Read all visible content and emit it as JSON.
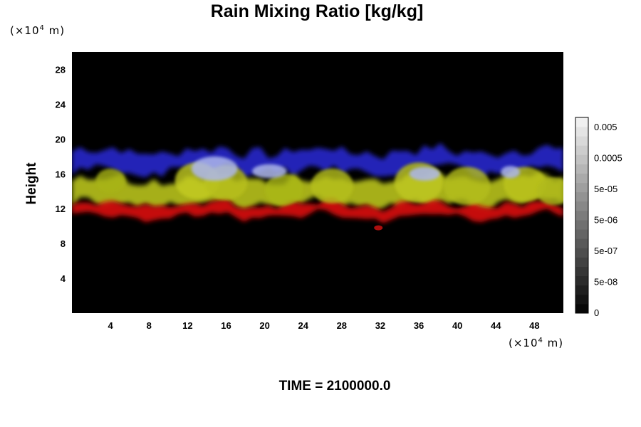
{
  "chart_data": {
    "type": "heatmap",
    "title": "Rain Mixing Ratio [kg/kg]",
    "ylabel": "Height",
    "xlabel": "",
    "unit_y": {
      "prefix": "(×10",
      "exp": "4",
      "suffix": " m)"
    },
    "unit_x": {
      "prefix": "(×10",
      "exp": "4",
      "suffix": " m)"
    },
    "footer": "TIME = 2100000.0",
    "xlim": [
      0,
      51
    ],
    "ylim": [
      0,
      30
    ],
    "x_ticks": [
      "4",
      "8",
      "12",
      "16",
      "20",
      "24",
      "28",
      "32",
      "36",
      "40",
      "44",
      "48"
    ],
    "y_ticks": [
      "4",
      "8",
      "12",
      "16",
      "20",
      "24",
      "28"
    ],
    "colorbar": {
      "labels": [
        "0",
        "5e-08",
        "5e-07",
        "5e-06",
        "5e-05",
        "0.0005",
        "0.005"
      ],
      "levels": 21
    },
    "bands": [
      {
        "name": "upper",
        "color": "#2a2ad8",
        "y_center": 17.5
      },
      {
        "name": "middle",
        "color": "#b8c21a",
        "y_center": 14.0
      },
      {
        "name": "lower",
        "color": "#d00f0f",
        "y_center": 11.8
      }
    ],
    "background_color": "#000000"
  }
}
